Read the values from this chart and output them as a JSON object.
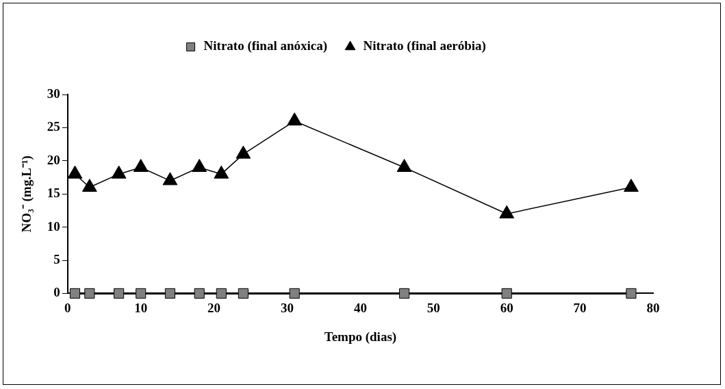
{
  "chart_data": {
    "type": "line",
    "xlabel": "Tempo (dias)",
    "ylabel": "NO₃⁻ (mg.L⁻¹)",
    "x": [
      1,
      3,
      7,
      10,
      14,
      18,
      21,
      24,
      31,
      46,
      60,
      77
    ],
    "series": [
      {
        "name": "Nitrato (final anóxica)",
        "color": "#808080",
        "marker": "square",
        "values": [
          0,
          0,
          0,
          0,
          0,
          0,
          0,
          0,
          0,
          0,
          0,
          0
        ]
      },
      {
        "name": "Nitrato (final aeróbia)",
        "color": "#000000",
        "marker": "triangle",
        "values": [
          18,
          16,
          18,
          19,
          17,
          19,
          18,
          21,
          26,
          19,
          12,
          16
        ]
      }
    ],
    "xlim": [
      0,
      80
    ],
    "xticks": [
      0,
      10,
      20,
      30,
      40,
      50,
      60,
      70,
      80
    ],
    "ylim": [
      0,
      30
    ],
    "yticks": [
      0,
      5,
      10,
      15,
      20,
      25,
      30
    ],
    "grid": false,
    "legend": "top",
    "line_style": "solid"
  }
}
